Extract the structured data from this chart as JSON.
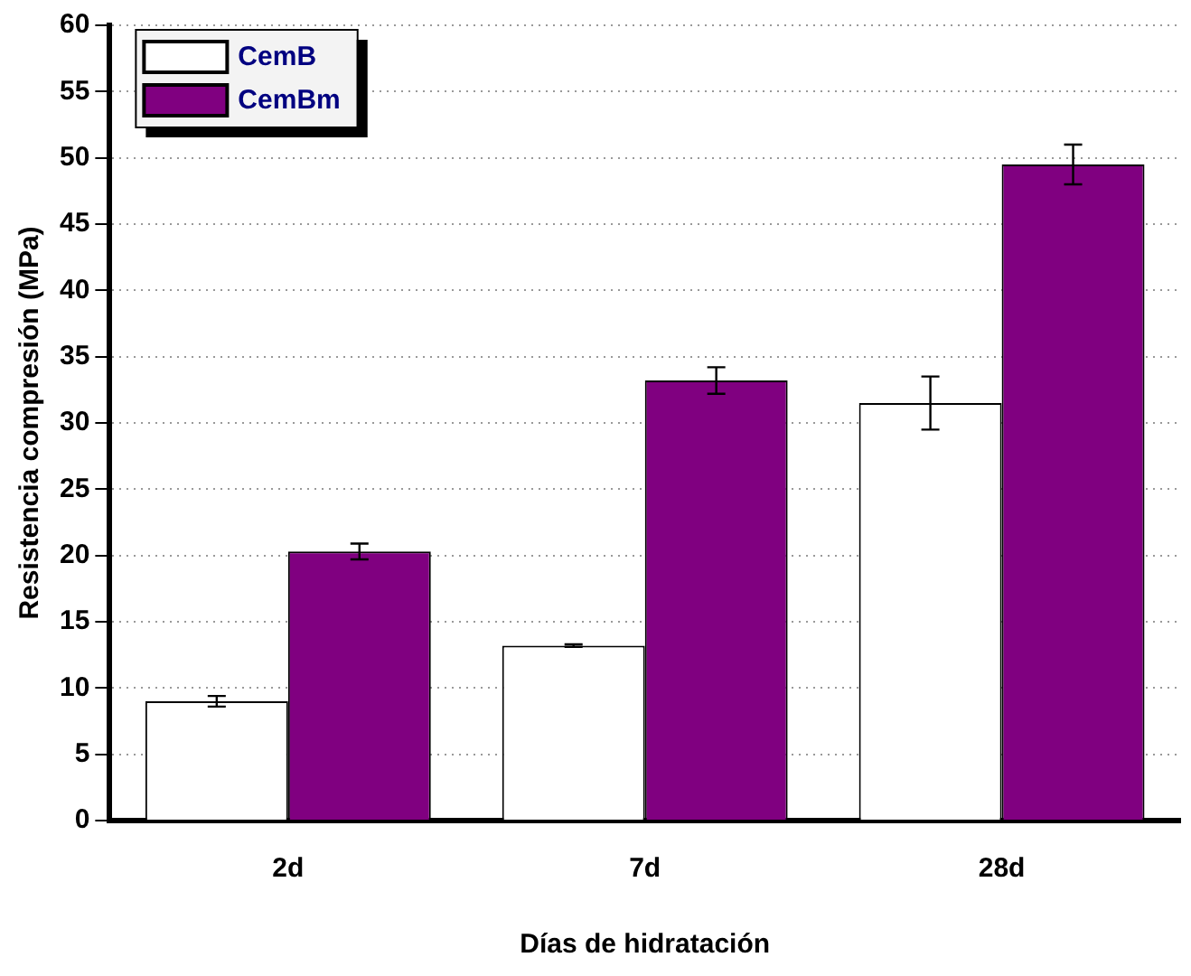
{
  "chart_data": {
    "type": "bar",
    "xlabel": "Días de hidratación",
    "ylabel": "Resistencia compresión (MPa)",
    "categories": [
      "2d",
      "7d",
      "28d"
    ],
    "series": [
      {
        "name": "CemB",
        "color": "#ffffff",
        "values": [
          9.0,
          13.2,
          31.5
        ],
        "errors": [
          0.4,
          0.1,
          2.0
        ]
      },
      {
        "name": "CemBm",
        "color": "#800080",
        "values": [
          20.3,
          33.2,
          49.5
        ],
        "errors": [
          0.6,
          1.0,
          1.5
        ]
      }
    ],
    "ylim": [
      0,
      60
    ],
    "yticks": [
      0,
      5,
      10,
      15,
      20,
      25,
      30,
      35,
      40,
      45,
      50,
      55,
      60
    ],
    "grid": "y",
    "legend": "top left"
  }
}
